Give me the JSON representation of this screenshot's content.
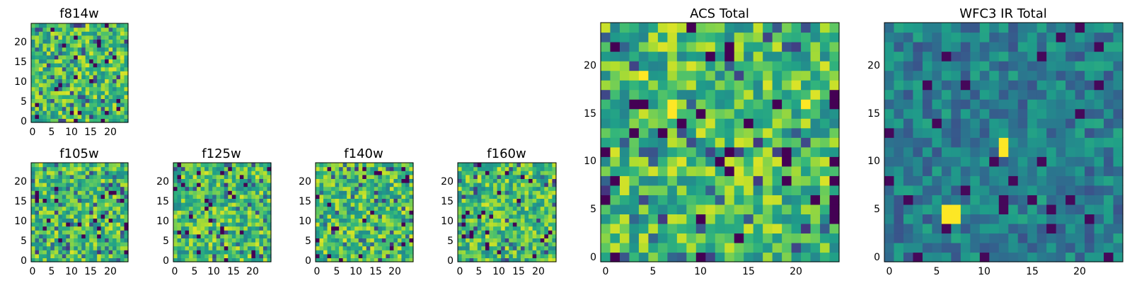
{
  "chart_data": [
    {
      "type": "heatmap",
      "title": "f814w",
      "grid_size": 25,
      "colormap": "viridis",
      "hot_spots": [],
      "xlim": [
        0,
        24
      ],
      "ylim": [
        0,
        24
      ],
      "xticks": [
        "0",
        "5",
        "10",
        "15",
        "20"
      ],
      "yticks": [
        "0",
        "5",
        "10",
        "15",
        "20"
      ],
      "value_range": [
        0,
        1
      ],
      "seed": 11
    },
    {
      "type": "heatmap",
      "title": "f105w",
      "grid_size": 25,
      "colormap": "viridis",
      "hot_spots": [],
      "xlim": [
        0,
        24
      ],
      "ylim": [
        0,
        24
      ],
      "xticks": [
        "0",
        "5",
        "10",
        "15",
        "20"
      ],
      "yticks": [
        "0",
        "5",
        "10",
        "15",
        "20"
      ],
      "value_range": [
        0,
        1
      ],
      "seed": 23
    },
    {
      "type": "heatmap",
      "title": "f125w",
      "grid_size": 25,
      "colormap": "viridis",
      "hot_spots": [],
      "xlim": [
        0,
        24
      ],
      "ylim": [
        0,
        24
      ],
      "xticks": [
        "0",
        "5",
        "10",
        "15",
        "20"
      ],
      "yticks": [
        "0",
        "5",
        "10",
        "15",
        "20"
      ],
      "value_range": [
        0,
        1
      ],
      "seed": 37
    },
    {
      "type": "heatmap",
      "title": "f140w",
      "grid_size": 25,
      "colormap": "viridis",
      "hot_spots": [],
      "xlim": [
        0,
        24
      ],
      "ylim": [
        0,
        24
      ],
      "xticks": [
        "0",
        "5",
        "10",
        "15",
        "20"
      ],
      "yticks": [
        "0",
        "5",
        "10",
        "15",
        "20"
      ],
      "value_range": [
        0,
        1
      ],
      "seed": 41
    },
    {
      "type": "heatmap",
      "title": "f160w",
      "grid_size": 25,
      "colormap": "viridis",
      "hot_spots": [],
      "xlim": [
        0,
        24
      ],
      "ylim": [
        0,
        24
      ],
      "xticks": [
        "0",
        "5",
        "10",
        "15",
        "20"
      ],
      "yticks": [
        "0",
        "5",
        "10",
        "15",
        "20"
      ],
      "value_range": [
        0,
        1
      ],
      "seed": 53
    },
    {
      "type": "heatmap",
      "title": "ACS Total",
      "grid_size": 25,
      "colormap": "viridis",
      "hot_spots": [
        [
          7,
          15
        ],
        [
          7,
          16
        ],
        [
          4,
          19
        ],
        [
          21,
          16
        ]
      ],
      "xlim": [
        0,
        24
      ],
      "ylim": [
        0,
        24
      ],
      "xticks": [
        "0",
        "5",
        "10",
        "15",
        "20"
      ],
      "yticks": [
        "0",
        "5",
        "10",
        "15",
        "20"
      ],
      "value_range": [
        0,
        1
      ],
      "seed": 67
    },
    {
      "type": "heatmap",
      "title": "WFC3 IR Total",
      "grid_size": 25,
      "colormap": "viridis",
      "hot_spots": [
        [
          6,
          5
        ],
        [
          7,
          5
        ],
        [
          6,
          4
        ],
        [
          7,
          4
        ],
        [
          12,
          12
        ],
        [
          12,
          11
        ]
      ],
      "xlim": [
        0,
        24
      ],
      "ylim": [
        0,
        24
      ],
      "xticks": [
        "0",
        "5",
        "10",
        "15",
        "20"
      ],
      "yticks": [
        "0",
        "5",
        "10",
        "15",
        "20"
      ],
      "value_range": [
        0,
        1
      ],
      "seed": 79
    }
  ]
}
